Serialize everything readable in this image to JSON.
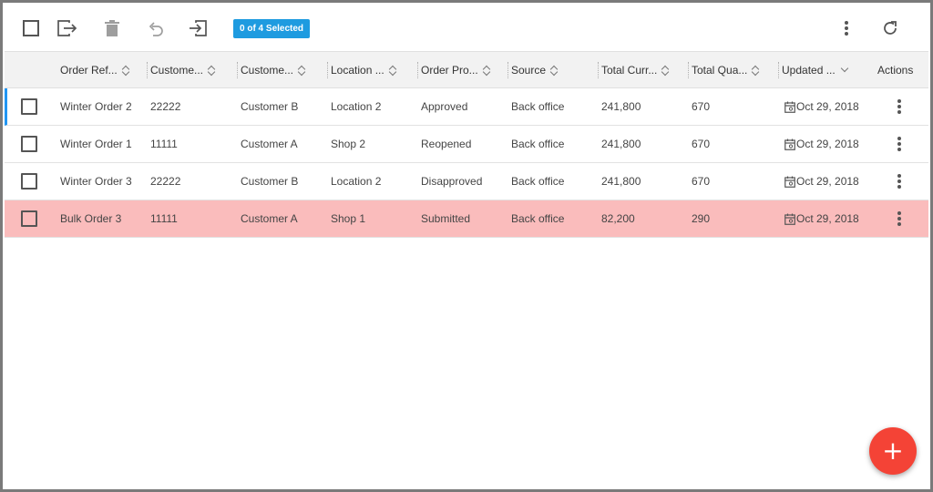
{
  "toolbar": {
    "selected_badge": "0 of 4 Selected",
    "icons": [
      "select-all-checkbox",
      "export-icon",
      "trash-icon",
      "undo-icon",
      "import-icon",
      "more-vert-icon",
      "refresh-icon"
    ]
  },
  "table": {
    "columns": [
      {
        "label": "Order Ref...",
        "sort": "both"
      },
      {
        "label": "Custome...",
        "sort": "both"
      },
      {
        "label": "Custome...",
        "sort": "both"
      },
      {
        "label": "Location ...",
        "sort": "both"
      },
      {
        "label": "Order Pro...",
        "sort": "both"
      },
      {
        "label": "Source",
        "sort": "both"
      },
      {
        "label": "Total Curr...",
        "sort": "both"
      },
      {
        "label": "Total Qua...",
        "sort": "both"
      },
      {
        "label": "Updated ...",
        "sort": "desc"
      },
      {
        "label": "Actions",
        "sort": "none"
      }
    ],
    "rows": [
      {
        "order_ref": "Winter Order 2",
        "customer_id": "22222",
        "customer_name": "Customer B",
        "location": "Location 2",
        "order_process": "Approved",
        "source": "Back office",
        "total_currency": "241,800",
        "total_quantity": "670",
        "updated": "Oct 29, 2018",
        "state": "active"
      },
      {
        "order_ref": "Winter Order 1",
        "customer_id": "11111",
        "customer_name": "Customer A",
        "location": "Shop 2",
        "order_process": "Reopened",
        "source": "Back office",
        "total_currency": "241,800",
        "total_quantity": "670",
        "updated": "Oct 29, 2018",
        "state": "normal"
      },
      {
        "order_ref": "Winter Order 3",
        "customer_id": "22222",
        "customer_name": "Customer B",
        "location": "Location 2",
        "order_process": "Disapproved",
        "source": "Back office",
        "total_currency": "241,800",
        "total_quantity": "670",
        "updated": "Oct 29, 2018",
        "state": "normal"
      },
      {
        "order_ref": "Bulk Order 3",
        "customer_id": "11111",
        "customer_name": "Customer A",
        "location": "Shop 1",
        "order_process": "Submitted",
        "source": "Back office",
        "total_currency": "82,200",
        "total_quantity": "290",
        "updated": "Oct 29, 2018",
        "state": "highlighted"
      }
    ]
  },
  "fab": {
    "label": "+",
    "icon": "add-icon"
  },
  "colors": {
    "badge": "#1e9be0",
    "highlight_row": "#fabcbc",
    "active_row_border": "#2196f3",
    "fab": "#f44336"
  }
}
